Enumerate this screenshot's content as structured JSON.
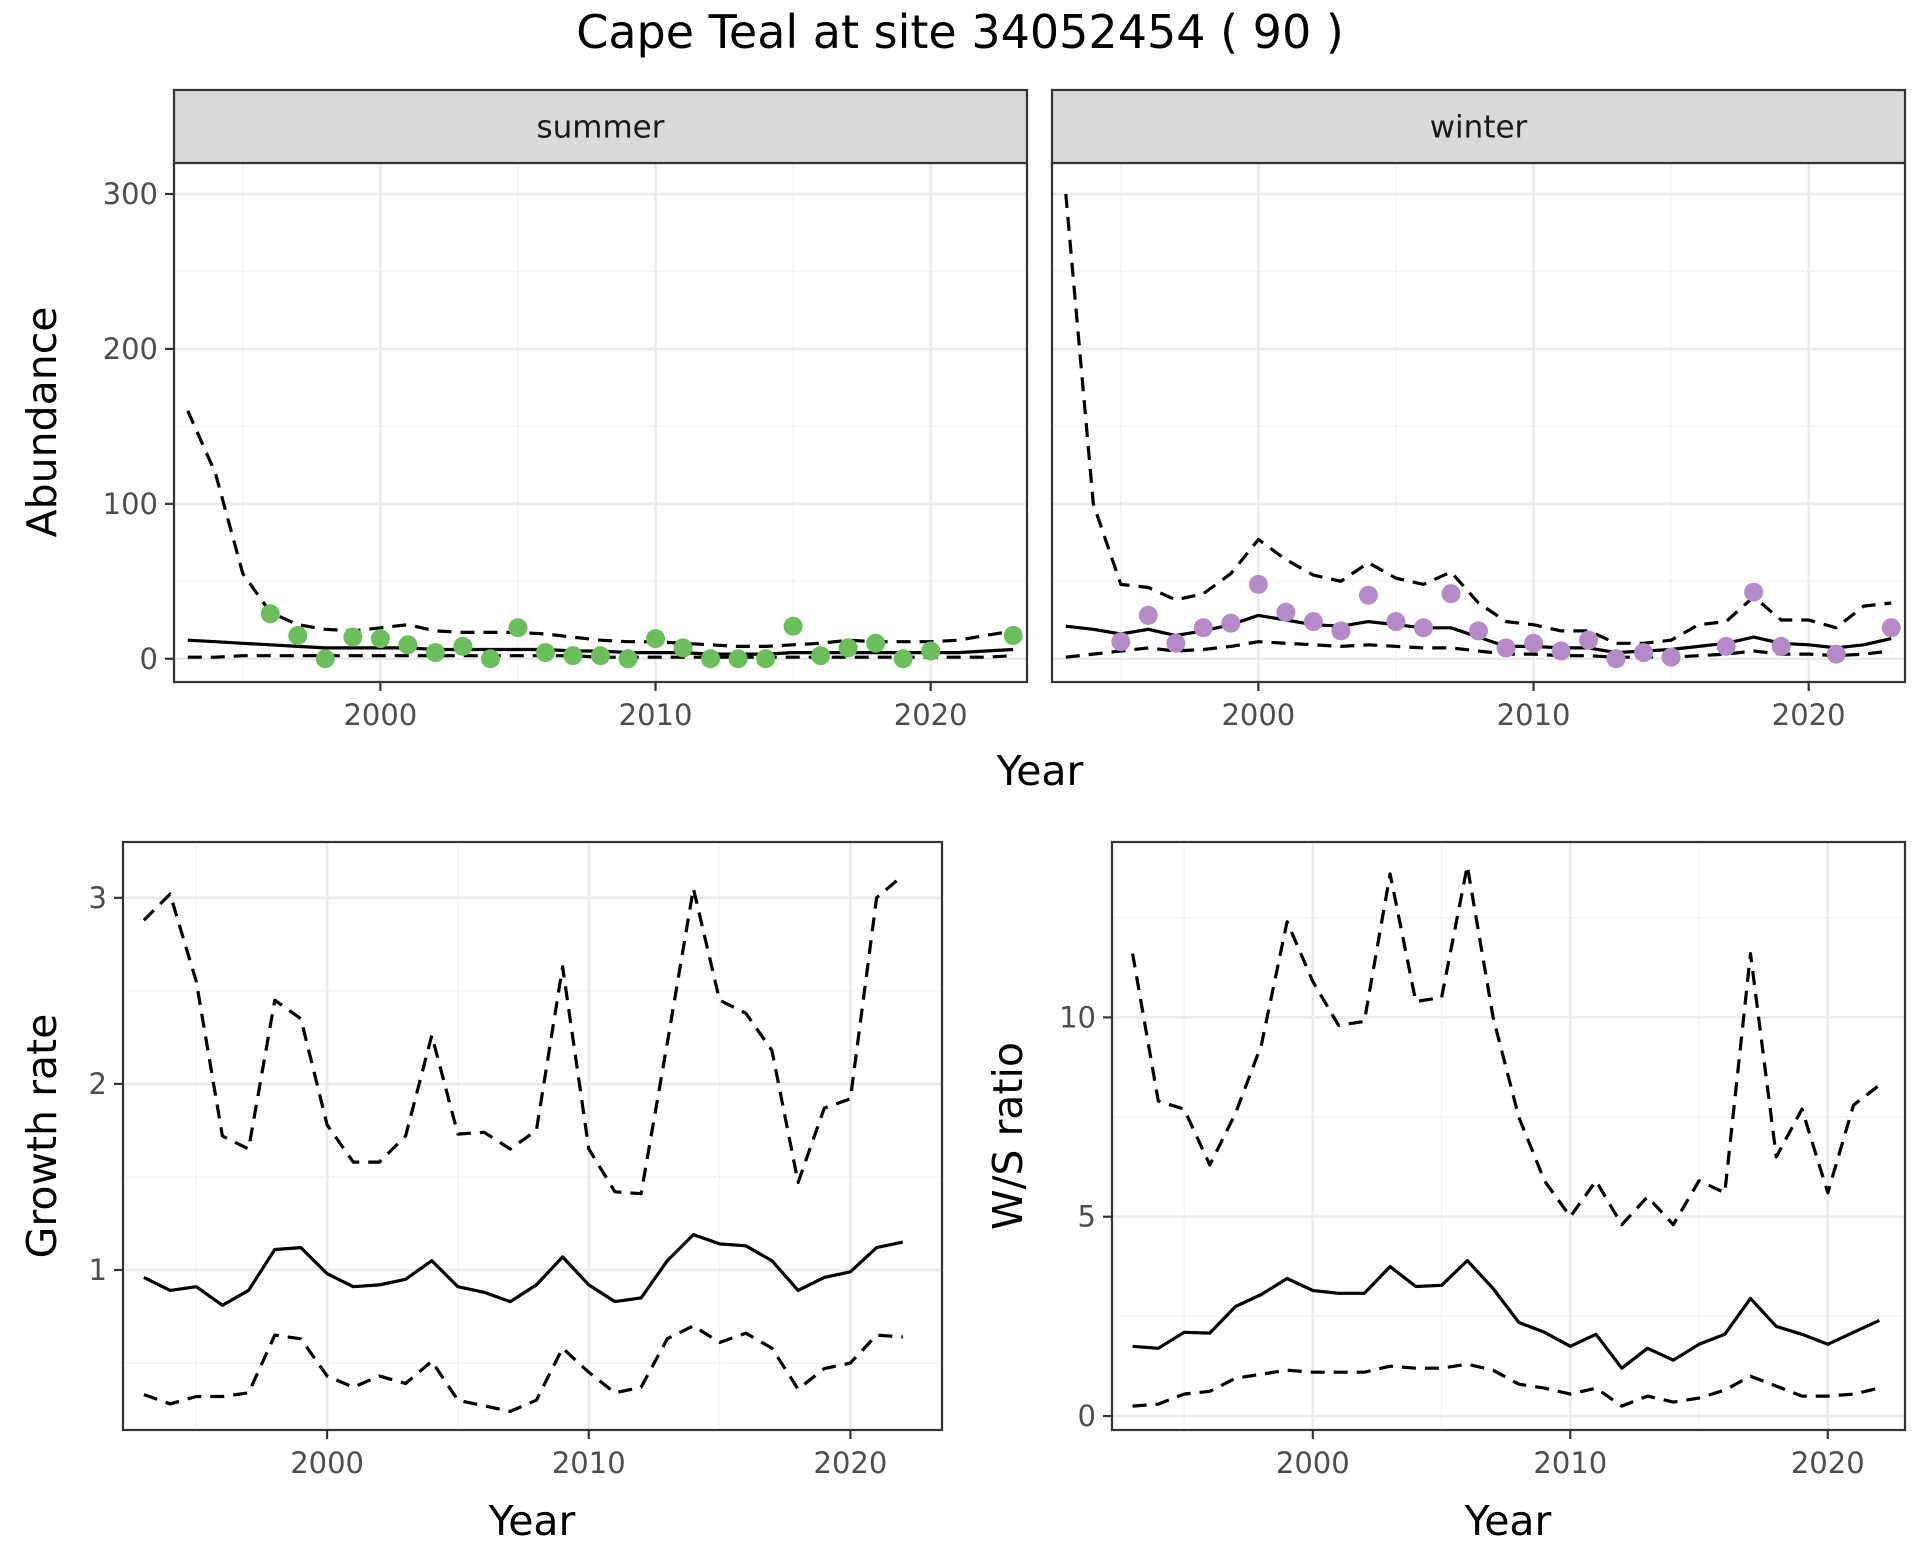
{
  "title": "Cape Teal at site 34052454 ( 90 )",
  "chart_data": [
    {
      "type": "line",
      "panel": "summer",
      "xlabel": "Year",
      "ylabel": "Abundance",
      "xlim": [
        1992.5,
        2023.5
      ],
      "ylim": [
        -15,
        320
      ],
      "x_ticks": [
        2000,
        2010,
        2020
      ],
      "y_ticks": [
        0,
        100,
        200,
        300
      ],
      "point_color": "#6abf5a",
      "grid": true,
      "series": [
        {
          "role": "estimate",
          "x": [
            1993,
            1994,
            1995,
            1996,
            1997,
            1998,
            1999,
            2000,
            2001,
            2002,
            2003,
            2004,
            2005,
            2006,
            2007,
            2008,
            2009,
            2010,
            2011,
            2012,
            2013,
            2014,
            2015,
            2016,
            2017,
            2018,
            2019,
            2020,
            2021,
            2022,
            2023
          ],
          "values": [
            12,
            11,
            10,
            9,
            8,
            7,
            7,
            7,
            7,
            6,
            6,
            6,
            6,
            6,
            5,
            5,
            4,
            4,
            4,
            3,
            3,
            3,
            4,
            4,
            4,
            4,
            4,
            4,
            4,
            5,
            6
          ]
        },
        {
          "role": "upper",
          "x": [
            1993,
            1994,
            1995,
            1996,
            1997,
            1998,
            1999,
            2000,
            2001,
            2002,
            2003,
            2004,
            2005,
            2006,
            2007,
            2008,
            2009,
            2010,
            2011,
            2012,
            2013,
            2014,
            2015,
            2016,
            2017,
            2018,
            2019,
            2020,
            2021,
            2022,
            2023
          ],
          "values": [
            160,
            120,
            55,
            30,
            22,
            19,
            18,
            20,
            22,
            18,
            17,
            17,
            17,
            16,
            14,
            12,
            11,
            11,
            10,
            9,
            8,
            8,
            9,
            10,
            12,
            11,
            11,
            11,
            12,
            15,
            18
          ]
        },
        {
          "role": "lower",
          "x": [
            1993,
            1994,
            1995,
            1996,
            1997,
            1998,
            1999,
            2000,
            2001,
            2002,
            2003,
            2004,
            2005,
            2006,
            2007,
            2008,
            2009,
            2010,
            2011,
            2012,
            2013,
            2014,
            2015,
            2016,
            2017,
            2018,
            2019,
            2020,
            2021,
            2022,
            2023
          ],
          "values": [
            1,
            1,
            2,
            2,
            2,
            2,
            2,
            2,
            2,
            2,
            2,
            2,
            2,
            2,
            2,
            1,
            1,
            1,
            1,
            1,
            1,
            1,
            1,
            1,
            1,
            1,
            1,
            1,
            1,
            1,
            2
          ]
        },
        {
          "role": "observed",
          "x": [
            1996,
            1997,
            1998,
            1999,
            2000,
            2001,
            2002,
            2003,
            2004,
            2005,
            2006,
            2007,
            2008,
            2009,
            2010,
            2011,
            2012,
            2013,
            2014,
            2015,
            2016,
            2017,
            2018,
            2019,
            2020,
            2023
          ],
          "values": [
            29,
            15,
            0,
            14,
            13,
            9,
            4,
            8,
            0,
            20,
            4,
            2,
            2,
            0,
            13,
            7,
            0,
            0,
            0,
            21,
            2,
            7,
            10,
            0,
            5,
            15
          ]
        }
      ]
    },
    {
      "type": "line",
      "panel": "winter",
      "xlabel": "Year",
      "ylabel": "Abundance",
      "xlim": [
        1992.5,
        2023.5
      ],
      "ylim": [
        -15,
        320
      ],
      "x_ticks": [
        2000,
        2010,
        2020
      ],
      "y_ticks": [
        0,
        100,
        200,
        300
      ],
      "point_color": "#b48ac8",
      "grid": true,
      "series": [
        {
          "role": "estimate",
          "x": [
            1993,
            1994,
            1995,
            1996,
            1997,
            1998,
            1999,
            2000,
            2001,
            2002,
            2003,
            2004,
            2005,
            2006,
            2007,
            2008,
            2009,
            2010,
            2011,
            2012,
            2013,
            2014,
            2015,
            2016,
            2017,
            2018,
            2019,
            2020,
            2021,
            2022,
            2023
          ],
          "values": [
            21,
            19,
            16,
            19,
            15,
            18,
            22,
            28,
            25,
            22,
            21,
            24,
            22,
            20,
            20,
            14,
            8,
            8,
            7,
            7,
            4,
            5,
            6,
            8,
            10,
            14,
            10,
            9,
            7,
            9,
            13
          ]
        },
        {
          "role": "upper",
          "x": [
            1993,
            1994,
            1995,
            1996,
            1997,
            1998,
            1999,
            2000,
            2001,
            2002,
            2003,
            2004,
            2005,
            2006,
            2007,
            2008,
            2009,
            2010,
            2011,
            2012,
            2013,
            2014,
            2015,
            2016,
            2017,
            2018,
            2019,
            2020,
            2021,
            2022,
            2023
          ],
          "values": [
            300,
            100,
            48,
            46,
            38,
            42,
            55,
            77,
            64,
            54,
            50,
            62,
            52,
            48,
            56,
            36,
            24,
            22,
            18,
            18,
            10,
            10,
            12,
            22,
            24,
            40,
            25,
            25,
            20,
            34,
            36
          ]
        },
        {
          "role": "lower",
          "x": [
            1993,
            1994,
            1995,
            1996,
            1997,
            1998,
            1999,
            2000,
            2001,
            2002,
            2003,
            2004,
            2005,
            2006,
            2007,
            2008,
            2009,
            2010,
            2011,
            2012,
            2013,
            2014,
            2015,
            2016,
            2017,
            2018,
            2019,
            2020,
            2021,
            2022,
            2023
          ],
          "values": [
            1,
            3,
            5,
            7,
            5,
            6,
            8,
            11,
            10,
            9,
            8,
            9,
            8,
            7,
            7,
            5,
            3,
            3,
            2,
            2,
            1,
            1,
            1,
            2,
            3,
            5,
            3,
            3,
            2,
            3,
            5
          ]
        },
        {
          "role": "observed",
          "x": [
            1995,
            1996,
            1997,
            1998,
            1999,
            2000,
            2001,
            2002,
            2003,
            2004,
            2005,
            2006,
            2007,
            2008,
            2009,
            2010,
            2011,
            2012,
            2013,
            2014,
            2015,
            2017,
            2018,
            2019,
            2021,
            2023
          ],
          "values": [
            11,
            28,
            10,
            20,
            23,
            48,
            30,
            24,
            18,
            41,
            24,
            20,
            42,
            18,
            7,
            10,
            5,
            12,
            0,
            4,
            1,
            8,
            43,
            8,
            3,
            20
          ]
        }
      ]
    },
    {
      "type": "line",
      "panel": "growth",
      "xlabel": "Year",
      "ylabel": "Growth rate",
      "xlim": [
        1992.2,
        2023.5
      ],
      "ylim": [
        0.14,
        3.3
      ],
      "x_ticks": [
        2000,
        2010,
        2020
      ],
      "y_ticks": [
        1,
        2,
        3
      ],
      "grid": true,
      "series": [
        {
          "role": "estimate",
          "x": [
            1993,
            1994,
            1995,
            1996,
            1997,
            1998,
            1999,
            2000,
            2001,
            2002,
            2003,
            2004,
            2005,
            2006,
            2007,
            2008,
            2009,
            2010,
            2011,
            2012,
            2013,
            2014,
            2015,
            2016,
            2017,
            2018,
            2019,
            2020,
            2021,
            2022
          ],
          "values": [
            0.96,
            0.89,
            0.91,
            0.81,
            0.89,
            1.11,
            1.12,
            0.98,
            0.91,
            0.92,
            0.95,
            1.05,
            0.91,
            0.88,
            0.83,
            0.92,
            1.07,
            0.92,
            0.83,
            0.85,
            1.05,
            1.19,
            1.14,
            1.13,
            1.05,
            0.89,
            0.96,
            0.99,
            1.12,
            1.15
          ]
        },
        {
          "role": "upper",
          "x": [
            1993,
            1994,
            1995,
            1996,
            1997,
            1998,
            1999,
            2000,
            2001,
            2002,
            2003,
            2004,
            2005,
            2006,
            2007,
            2008,
            2009,
            2010,
            2011,
            2012,
            2013,
            2014,
            2015,
            2016,
            2017,
            2018,
            2019,
            2020,
            2021,
            2022
          ],
          "values": [
            2.88,
            3.02,
            2.55,
            1.72,
            1.65,
            2.45,
            2.35,
            1.78,
            1.58,
            1.58,
            1.72,
            2.26,
            1.73,
            1.74,
            1.65,
            1.75,
            2.63,
            1.65,
            1.42,
            1.41,
            2.22,
            3.05,
            2.45,
            2.38,
            2.18,
            1.47,
            1.87,
            1.92,
            3.0,
            3.12
          ]
        },
        {
          "role": "lower",
          "x": [
            1993,
            1994,
            1995,
            1996,
            1997,
            1998,
            1999,
            2000,
            2001,
            2002,
            2003,
            2004,
            2005,
            2006,
            2007,
            2008,
            2009,
            2010,
            2011,
            2012,
            2013,
            2014,
            2015,
            2016,
            2017,
            2018,
            2019,
            2020,
            2021,
            2022
          ],
          "values": [
            0.33,
            0.28,
            0.32,
            0.32,
            0.34,
            0.65,
            0.63,
            0.43,
            0.37,
            0.43,
            0.39,
            0.51,
            0.3,
            0.27,
            0.24,
            0.3,
            0.58,
            0.45,
            0.34,
            0.37,
            0.63,
            0.7,
            0.61,
            0.66,
            0.58,
            0.36,
            0.47,
            0.5,
            0.65,
            0.64
          ]
        }
      ]
    },
    {
      "type": "line",
      "panel": "ws-ratio",
      "xlabel": "Year",
      "ylabel": "W/S ratio",
      "xlim": [
        1992.2,
        2023.0
      ],
      "ylim": [
        -0.35,
        14.4
      ],
      "x_ticks": [
        2000,
        2010,
        2020
      ],
      "y_ticks": [
        0,
        5,
        10
      ],
      "grid": true,
      "series": [
        {
          "role": "estimate",
          "x": [
            1993,
            1994,
            1995,
            1996,
            1997,
            1998,
            1999,
            2000,
            2001,
            2002,
            2003,
            2004,
            2005,
            2006,
            2007,
            2008,
            2009,
            2010,
            2011,
            2012,
            2013,
            2014,
            2015,
            2016,
            2017,
            2018,
            2019,
            2020,
            2021,
            2022
          ],
          "values": [
            1.75,
            1.7,
            2.1,
            2.08,
            2.75,
            3.05,
            3.45,
            3.15,
            3.08,
            3.08,
            3.75,
            3.25,
            3.28,
            3.9,
            3.2,
            2.35,
            2.1,
            1.75,
            2.05,
            1.2,
            1.7,
            1.4,
            1.8,
            2.05,
            2.95,
            2.25,
            2.05,
            1.8,
            2.1,
            2.4
          ]
        },
        {
          "role": "upper",
          "x": [
            1993,
            1994,
            1995,
            1996,
            1997,
            1998,
            1999,
            2000,
            2001,
            2002,
            2003,
            2004,
            2005,
            2006,
            2007,
            2008,
            2009,
            2010,
            2011,
            2012,
            2013,
            2014,
            2015,
            2016,
            2017,
            2018,
            2019,
            2020,
            2021,
            2022
          ],
          "values": [
            11.6,
            7.9,
            7.7,
            6.3,
            7.6,
            9.3,
            12.4,
            10.9,
            9.8,
            9.9,
            13.6,
            10.4,
            10.5,
            13.8,
            10.0,
            7.5,
            5.9,
            5.0,
            5.9,
            4.8,
            5.5,
            4.8,
            5.9,
            5.6,
            11.6,
            6.5,
            7.7,
            5.6,
            7.8,
            8.3
          ]
        },
        {
          "role": "lower",
          "x": [
            1993,
            1994,
            1995,
            1996,
            1997,
            1998,
            1999,
            2000,
            2001,
            2002,
            2003,
            2004,
            2005,
            2006,
            2007,
            2008,
            2009,
            2010,
            2011,
            2012,
            2013,
            2014,
            2015,
            2016,
            2017,
            2018,
            2019,
            2020,
            2021,
            2022
          ],
          "values": [
            0.25,
            0.3,
            0.55,
            0.62,
            0.95,
            1.05,
            1.15,
            1.1,
            1.1,
            1.1,
            1.25,
            1.2,
            1.2,
            1.3,
            1.15,
            0.8,
            0.7,
            0.55,
            0.7,
            0.25,
            0.5,
            0.35,
            0.45,
            0.65,
            1.0,
            0.75,
            0.5,
            0.5,
            0.55,
            0.7
          ]
        }
      ]
    }
  ]
}
